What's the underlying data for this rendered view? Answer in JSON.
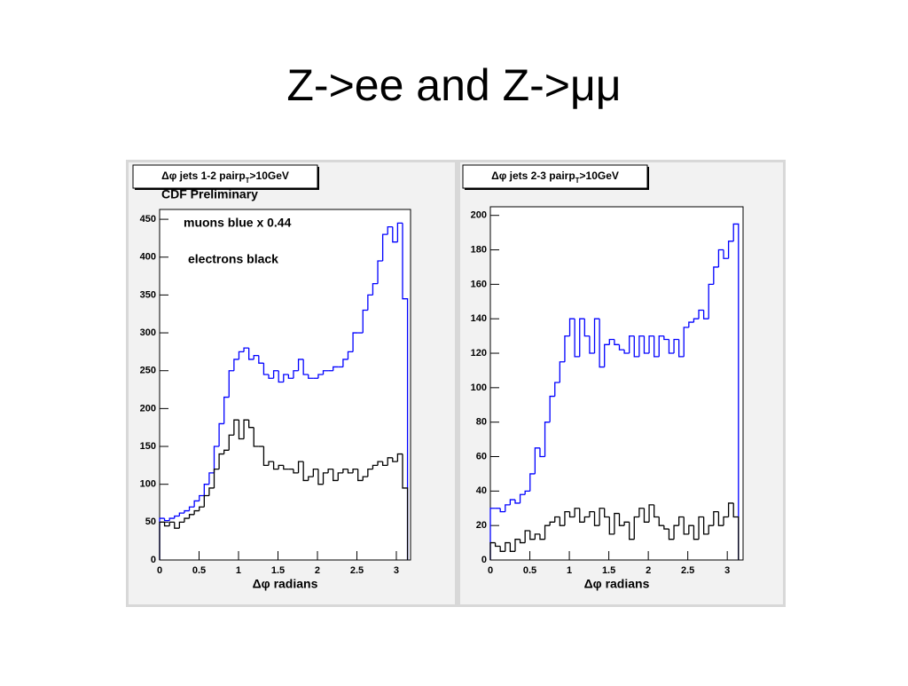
{
  "slide_title": "Z->ee and Z->μμ",
  "chart_data": [
    {
      "type": "histogram",
      "title": [
        "Δφ jets 1-2 pairp",
        "T",
        ">10GeV"
      ],
      "annotations": [
        "CDF Preliminary",
        "muons blue x 0.44",
        "electrons black"
      ],
      "x_label": "Δφ radians",
      "xlim": [
        0,
        3.18
      ],
      "xticks": [
        0,
        0.5,
        1,
        1.5,
        2,
        2.5,
        3
      ],
      "ylim": [
        0,
        463
      ],
      "yticks": [
        0,
        50,
        100,
        150,
        200,
        250,
        300,
        350,
        400,
        450
      ],
      "bins": [
        0,
        0.0628,
        0.1257,
        0.1885,
        0.2513,
        0.3142,
        0.377,
        0.4398,
        0.5027,
        0.5655,
        0.6283,
        0.6912,
        0.754,
        0.8168,
        0.8796,
        0.9425,
        1.0053,
        1.0681,
        1.131,
        1.1938,
        1.2566,
        1.3195,
        1.3823,
        1.4451,
        1.508,
        1.5708,
        1.6336,
        1.6965,
        1.7593,
        1.8221,
        1.885,
        1.9478,
        2.0106,
        2.0735,
        2.1363,
        2.1991,
        2.2619,
        2.3248,
        2.3876,
        2.4504,
        2.5133,
        2.5761,
        2.6389,
        2.7018,
        2.7646,
        2.8274,
        2.8903,
        2.9531,
        3.0159,
        3.0788,
        3.1416
      ],
      "series": [
        {
          "color": "#0000ff",
          "values": [
            55,
            52,
            55,
            58,
            62,
            65,
            70,
            78,
            85,
            100,
            115,
            150,
            180,
            215,
            250,
            265,
            275,
            280,
            265,
            270,
            260,
            245,
            240,
            250,
            235,
            245,
            240,
            250,
            265,
            245,
            240,
            240,
            245,
            250,
            250,
            255,
            255,
            265,
            275,
            300,
            300,
            330,
            350,
            365,
            395,
            430,
            440,
            420,
            445,
            345
          ]
        },
        {
          "color": "#000000",
          "values": [
            50,
            45,
            50,
            42,
            50,
            55,
            60,
            65,
            70,
            85,
            95,
            120,
            140,
            145,
            165,
            185,
            160,
            185,
            175,
            150,
            150,
            125,
            130,
            120,
            125,
            120,
            120,
            115,
            130,
            105,
            110,
            120,
            100,
            115,
            120,
            105,
            115,
            120,
            115,
            120,
            105,
            110,
            120,
            125,
            130,
            125,
            135,
            130,
            140,
            95
          ]
        }
      ]
    },
    {
      "type": "histogram",
      "title": [
        "Δφ jets 2-3 pairp",
        "T",
        ">10GeV"
      ],
      "x_label": "Δφ radians",
      "xlim": [
        0,
        3.2
      ],
      "xticks": [
        0,
        0.5,
        1,
        1.5,
        2,
        2.5,
        3
      ],
      "ylim": [
        0,
        205
      ],
      "yticks": [
        0,
        20,
        40,
        60,
        80,
        100,
        120,
        140,
        160,
        180,
        200
      ],
      "bins": [
        0,
        0.0628,
        0.1257,
        0.1885,
        0.2513,
        0.3142,
        0.377,
        0.4398,
        0.5027,
        0.5655,
        0.6283,
        0.6912,
        0.754,
        0.8168,
        0.8796,
        0.9425,
        1.0053,
        1.0681,
        1.131,
        1.1938,
        1.2566,
        1.3195,
        1.3823,
        1.4451,
        1.508,
        1.5708,
        1.6336,
        1.6965,
        1.7593,
        1.8221,
        1.885,
        1.9478,
        2.0106,
        2.0735,
        2.1363,
        2.1991,
        2.2619,
        2.3248,
        2.3876,
        2.4504,
        2.5133,
        2.5761,
        2.6389,
        2.7018,
        2.7646,
        2.8274,
        2.8903,
        2.9531,
        3.0159,
        3.0788,
        3.1416
      ],
      "series": [
        {
          "color": "#0000ff",
          "values": [
            30,
            30,
            28,
            32,
            35,
            33,
            38,
            40,
            50,
            65,
            60,
            80,
            95,
            103,
            115,
            130,
            140,
            118,
            140,
            130,
            120,
            140,
            112,
            125,
            128,
            125,
            122,
            120,
            130,
            118,
            130,
            120,
            130,
            118,
            130,
            128,
            120,
            128,
            118,
            135,
            138,
            140,
            145,
            140,
            160,
            170,
            180,
            175,
            185,
            195
          ]
        },
        {
          "color": "#000000",
          "values": [
            10,
            8,
            5,
            10,
            5,
            12,
            10,
            17,
            12,
            15,
            12,
            20,
            22,
            25,
            20,
            28,
            25,
            30,
            22,
            25,
            28,
            20,
            30,
            25,
            15,
            27,
            20,
            22,
            12,
            25,
            30,
            22,
            32,
            25,
            20,
            18,
            12,
            20,
            25,
            15,
            20,
            12,
            25,
            15,
            20,
            28,
            20,
            25,
            33,
            25
          ]
        }
      ]
    }
  ]
}
